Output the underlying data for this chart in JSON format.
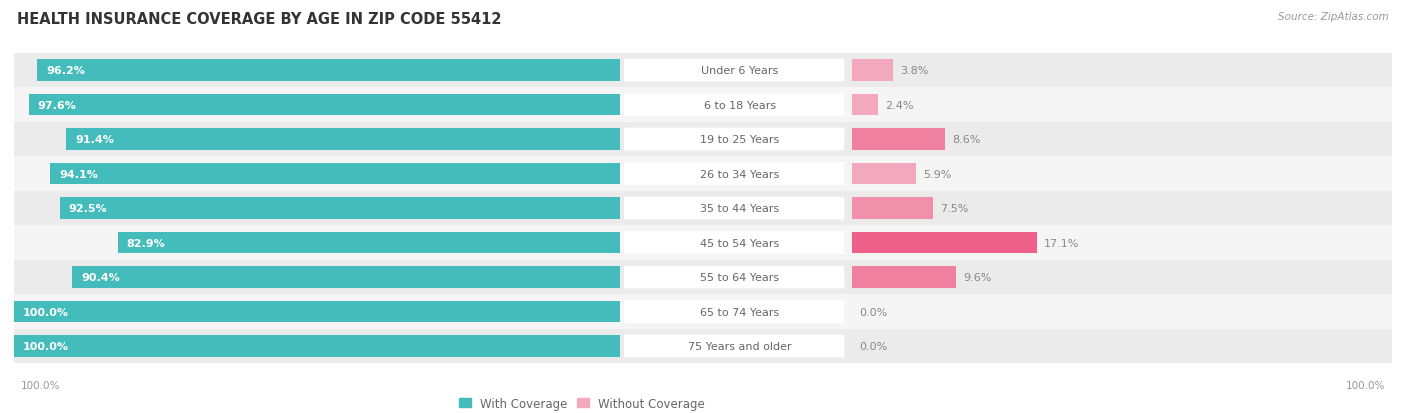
{
  "title": "HEALTH INSURANCE COVERAGE BY AGE IN ZIP CODE 55412",
  "source": "Source: ZipAtlas.com",
  "categories": [
    "Under 6 Years",
    "6 to 18 Years",
    "19 to 25 Years",
    "26 to 34 Years",
    "35 to 44 Years",
    "45 to 54 Years",
    "55 to 64 Years",
    "65 to 74 Years",
    "75 Years and older"
  ],
  "with_coverage": [
    96.2,
    97.6,
    91.4,
    94.1,
    92.5,
    82.9,
    90.4,
    100.0,
    100.0
  ],
  "without_coverage": [
    3.8,
    2.4,
    8.6,
    5.9,
    7.5,
    17.1,
    9.6,
    0.0,
    0.0
  ],
  "teal_color": "#45BCBC",
  "pink_colors": [
    "#F4A8BE",
    "#F4A8BE",
    "#F080A0",
    "#F4A8BE",
    "#F090AA",
    "#EE5F8A",
    "#F080A0",
    "#F4A8BE",
    "#F4A8BE"
  ],
  "row_colors": [
    "#EBEBEB",
    "#F5F5F5",
    "#EBEBEB",
    "#F5F5F5",
    "#EBEBEB",
    "#F5F5F5",
    "#EBEBEB",
    "#F5F5F5",
    "#EBEBEB"
  ],
  "title_fontsize": 10.5,
  "label_fontsize": 8.0,
  "pct_fontsize": 8.0,
  "legend_fontsize": 8.5,
  "bar_height": 0.62,
  "figsize": [
    14.06,
    4.14
  ],
  "dpi": 100,
  "left_xlim": [
    0,
    100
  ],
  "right_xlim": [
    0,
    100
  ],
  "label_box_color": "#FFFFFF",
  "label_text_color": "#666666",
  "pct_label_color_left": "#FFFFFF",
  "pct_label_color_right": "#888888"
}
